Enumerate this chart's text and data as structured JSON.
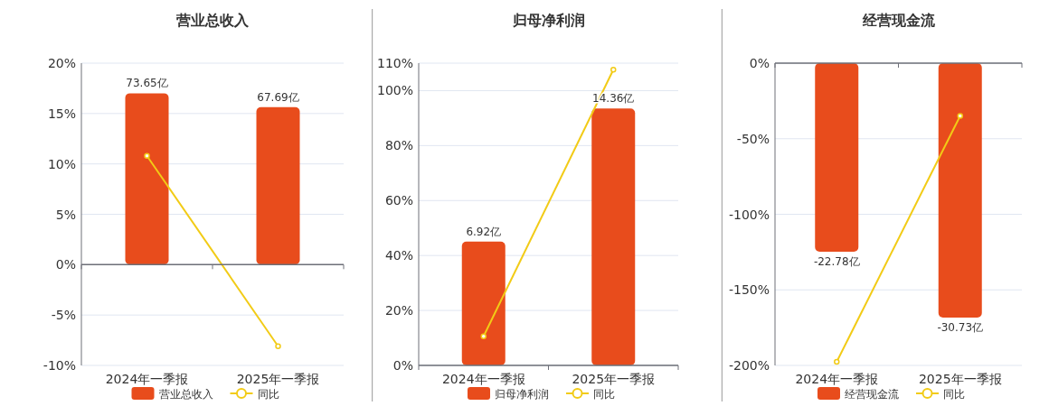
{
  "chart_data": [
    {
      "type": "bar",
      "title": "营业总收入",
      "categories": [
        "2024年一季报",
        "2025年一季报"
      ],
      "series": [
        {
          "name": "营业总收入",
          "axis": "y2",
          "color": "#e84c1c",
          "values": [
            73.65,
            67.69
          ],
          "value_labels": [
            "73.65亿",
            "67.69亿"
          ]
        },
        {
          "name": "同比",
          "type": "line",
          "color": "#f2cb16",
          "marker": "circle",
          "values": [
            10.8,
            -8.1
          ]
        }
      ],
      "ylim": [
        -10,
        20
      ],
      "yticks": [
        {
          "value": -10,
          "label": "-10%"
        },
        {
          "value": -5,
          "label": "-5%"
        },
        {
          "value": 0,
          "label": "0%"
        },
        {
          "value": 5,
          "label": "5%"
        },
        {
          "value": 10,
          "label": "10%"
        },
        {
          "value": 15,
          "label": "15%"
        },
        {
          "value": 20,
          "label": "20%"
        }
      ],
      "y2lim": [
        -43.3,
        86.6
      ],
      "grid": "y",
      "legend": "bottom"
    },
    {
      "type": "bar",
      "title": "归母净利润",
      "categories": [
        "2024年一季报",
        "2025年一季报"
      ],
      "series": [
        {
          "name": "归母净利润",
          "axis": "y2",
          "color": "#e84c1c",
          "values": [
            6.92,
            14.36
          ],
          "value_labels": [
            "6.92亿",
            "14.36亿"
          ]
        },
        {
          "name": "同比",
          "type": "line",
          "color": "#f2cb16",
          "marker": "circle",
          "values": [
            10.6,
            107.6
          ]
        }
      ],
      "ylim": [
        0,
        110
      ],
      "yticks": [
        {
          "value": 0,
          "label": "0%"
        },
        {
          "value": 20,
          "label": "20%"
        },
        {
          "value": 40,
          "label": "40%"
        },
        {
          "value": 60,
          "label": "60%"
        },
        {
          "value": 80,
          "label": "80%"
        },
        {
          "value": 100,
          "label": "100%"
        },
        {
          "value": 110,
          "label": "110%"
        }
      ],
      "y2lim": [
        0,
        16.9
      ],
      "grid": "y",
      "legend": "bottom"
    },
    {
      "type": "bar",
      "title": "经营现金流",
      "categories": [
        "2024年一季报",
        "2025年一季报"
      ],
      "series": [
        {
          "name": "经营现金流",
          "axis": "y2",
          "color": "#e84c1c",
          "values": [
            -22.78,
            -30.73
          ],
          "value_labels": [
            "-22.78亿",
            "-30.73亿"
          ]
        },
        {
          "name": "同比",
          "type": "line",
          "color": "#f2cb16",
          "marker": "circle",
          "values": [
            -197.6,
            -34.9
          ]
        }
      ],
      "ylim": [
        -200,
        0
      ],
      "yticks": [
        {
          "value": -200,
          "label": "-200%"
        },
        {
          "value": -150,
          "label": "-150%"
        },
        {
          "value": -100,
          "label": "-100%"
        },
        {
          "value": -50,
          "label": "-50%"
        },
        {
          "value": 0,
          "label": "0%"
        }
      ],
      "y2lim": [
        -36.5,
        0
      ],
      "grid": "y",
      "legend": "bottom"
    }
  ]
}
